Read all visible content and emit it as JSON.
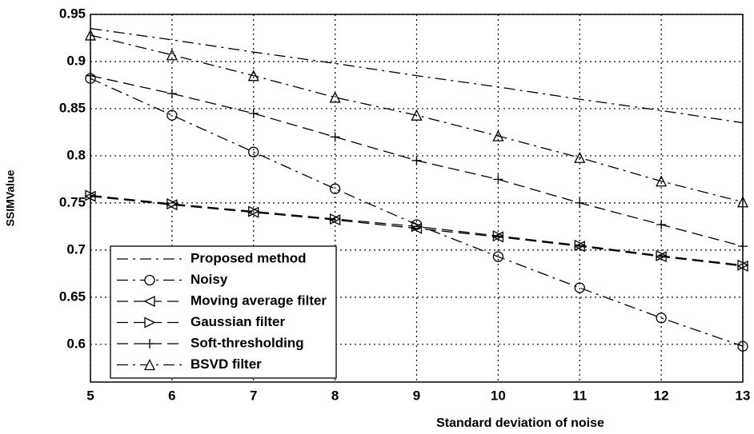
{
  "chart_data": {
    "type": "line",
    "x_label": "Standard deviation of noise",
    "y_label": "SSIMValue",
    "x": [
      5,
      6,
      7,
      8,
      9,
      10,
      11,
      12,
      13
    ],
    "xlim": [
      5,
      13
    ],
    "xticks": [
      5,
      6,
      7,
      8,
      9,
      10,
      11,
      12,
      13
    ],
    "ylim": [
      0.56,
      0.95
    ],
    "yticks": [
      0.6,
      0.65,
      0.7,
      0.75,
      0.8,
      0.85,
      0.9,
      0.95
    ],
    "grid": true,
    "legend": "lower left",
    "series": [
      {
        "name": "Proposed method",
        "color": "#000000",
        "line_style": "dashdot",
        "marker": "none",
        "values": [
          0.935,
          0.923,
          0.91,
          0.898,
          0.885,
          0.873,
          0.86,
          0.848,
          0.835
        ]
      },
      {
        "name": "Noisy",
        "color": "#000000",
        "line_style": "dashdot",
        "marker": "circle",
        "values": [
          0.882,
          0.843,
          0.804,
          0.765,
          0.727,
          0.693,
          0.66,
          0.628,
          0.598
        ]
      },
      {
        "name": "Moving average filter",
        "color": "#000000",
        "line_style": "dashed",
        "marker": "triangle-left",
        "values": [
          0.757,
          0.748,
          0.74,
          0.732,
          0.723,
          0.714,
          0.704,
          0.693,
          0.683
        ]
      },
      {
        "name": "Gaussian filter",
        "color": "#000000",
        "line_style": "dashed",
        "marker": "triangle-right",
        "values": [
          0.758,
          0.749,
          0.741,
          0.733,
          0.725,
          0.715,
          0.705,
          0.694,
          0.684
        ]
      },
      {
        "name": "Soft-thresholding",
        "color": "#000000",
        "line_style": "dashed",
        "marker": "plus",
        "values": [
          0.885,
          0.866,
          0.845,
          0.82,
          0.795,
          0.775,
          0.75,
          0.727,
          0.704
        ]
      },
      {
        "name": "BSVD filter",
        "color": "#000000",
        "line_style": "dashdot",
        "marker": "triangle-up",
        "values": [
          0.928,
          0.907,
          0.885,
          0.862,
          0.843,
          0.821,
          0.798,
          0.773,
          0.751
        ]
      }
    ]
  }
}
